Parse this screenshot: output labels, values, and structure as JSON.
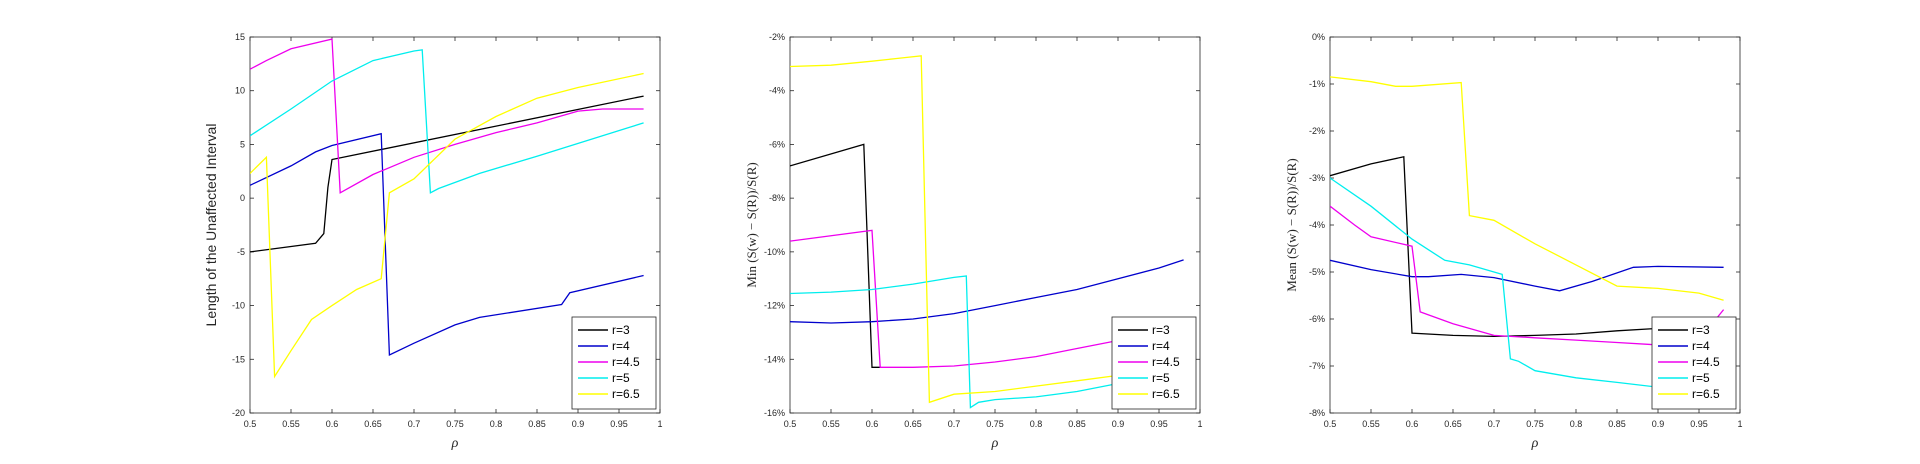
{
  "chart_data": [
    {
      "type": "line",
      "title": "",
      "xlabel": "ρ",
      "ylabel": "Length of the Unaffected Interval",
      "ylabel_style": "sans",
      "xlim": [
        0.5,
        1
      ],
      "ylim": [
        -20,
        15
      ],
      "xticks": [
        0.5,
        0.55,
        0.6,
        0.65,
        0.7,
        0.75,
        0.8,
        0.85,
        0.9,
        0.95,
        1
      ],
      "xtick_labels": [
        "0.5",
        "0.55",
        "0.6",
        "0.65",
        "0.7",
        "0.75",
        "0.8",
        "0.85",
        "0.9",
        "0.95",
        "1"
      ],
      "yticks": [
        -20,
        -15,
        -10,
        -5,
        0,
        5,
        10,
        15
      ],
      "ytick_labels": [
        "-20",
        "-15",
        "-10",
        "-5",
        "0",
        "5",
        "10",
        "15"
      ],
      "grid": false,
      "legend_position": "bottom-right",
      "series": [
        {
          "name": "r=3",
          "color": "#000000",
          "x": [
            0.5,
            0.58,
            0.59,
            0.595,
            0.6,
            0.98
          ],
          "y": [
            -5.0,
            -4.2,
            -3.3,
            1.0,
            3.6,
            9.5
          ]
        },
        {
          "name": "r=4",
          "color": "#0000cc",
          "x": [
            0.5,
            0.55,
            0.58,
            0.6,
            0.66,
            0.67,
            0.7,
            0.75,
            0.78,
            0.88,
            0.89,
            0.98
          ],
          "y": [
            1.2,
            3.0,
            4.3,
            4.9,
            6.0,
            -14.6,
            -13.5,
            -11.8,
            -11.1,
            -9.9,
            -8.8,
            -7.2
          ]
        },
        {
          "name": "r=4.5",
          "color": "#ee00ee",
          "x": [
            0.5,
            0.52,
            0.55,
            0.6,
            0.61,
            0.65,
            0.7,
            0.75,
            0.8,
            0.85,
            0.9,
            0.93,
            0.98
          ],
          "y": [
            12.0,
            12.8,
            13.9,
            14.8,
            0.5,
            2.2,
            3.8,
            5.0,
            6.1,
            7.0,
            8.1,
            8.3,
            8.3
          ]
        },
        {
          "name": "r=5",
          "color": "#00eeee",
          "x": [
            0.5,
            0.55,
            0.6,
            0.65,
            0.7,
            0.71,
            0.72,
            0.73,
            0.78,
            0.85,
            0.98
          ],
          "y": [
            5.8,
            8.3,
            10.9,
            12.8,
            13.7,
            13.8,
            0.5,
            0.9,
            2.3,
            3.9,
            7.0
          ]
        },
        {
          "name": "r=6.5",
          "color": "#ffff00",
          "x": [
            0.5,
            0.52,
            0.53,
            0.55,
            0.575,
            0.6,
            0.63,
            0.66,
            0.67,
            0.7,
            0.75,
            0.8,
            0.85,
            0.9,
            0.98
          ],
          "y": [
            2.3,
            3.8,
            -16.6,
            -14.2,
            -11.3,
            -10.0,
            -8.5,
            -7.5,
            0.5,
            1.8,
            5.5,
            7.6,
            9.3,
            10.3,
            11.6
          ]
        }
      ]
    },
    {
      "type": "line",
      "title": "",
      "xlabel": "ρ",
      "ylabel": "Min (S(w) − S(R))/S(R)",
      "ylabel_style": "serif",
      "xlim": [
        0.5,
        1
      ],
      "ylim": [
        -16,
        -2
      ],
      "xticks": [
        0.5,
        0.55,
        0.6,
        0.65,
        0.7,
        0.75,
        0.8,
        0.85,
        0.9,
        0.95,
        1
      ],
      "xtick_labels": [
        "0.5",
        "0.55",
        "0.6",
        "0.65",
        "0.7",
        "0.75",
        "0.8",
        "0.85",
        "0.9",
        "0.95",
        "1"
      ],
      "yticks": [
        -16,
        -14,
        -12,
        -10,
        -8,
        -6,
        -4,
        -2
      ],
      "ytick_labels": [
        "-16%",
        "-14%",
        "-12%",
        "-10%",
        "-8%",
        "-6%",
        "-4%",
        "-2%"
      ],
      "grid": false,
      "legend_position": "bottom-right",
      "series": [
        {
          "name": "r=3",
          "color": "#000000",
          "x": [
            0.5,
            0.59,
            0.6,
            0.61
          ],
          "y": [
            -6.8,
            -6.0,
            -14.3,
            -14.3
          ]
        },
        {
          "name": "r=4",
          "color": "#0000cc",
          "x": [
            0.5,
            0.55,
            0.6,
            0.65,
            0.7,
            0.75,
            0.8,
            0.85,
            0.9,
            0.95,
            0.98
          ],
          "y": [
            -12.6,
            -12.65,
            -12.6,
            -12.5,
            -12.3,
            -12.0,
            -11.7,
            -11.4,
            -11.0,
            -10.6,
            -10.3
          ]
        },
        {
          "name": "r=4.5",
          "color": "#ee00ee",
          "x": [
            0.5,
            0.6,
            0.61,
            0.65,
            0.7,
            0.75,
            0.8,
            0.85,
            0.9,
            0.95
          ],
          "y": [
            -9.6,
            -9.2,
            -14.3,
            -14.3,
            -14.25,
            -14.1,
            -13.9,
            -13.6,
            -13.3,
            -13.0
          ]
        },
        {
          "name": "r=5",
          "color": "#00eeee",
          "x": [
            0.5,
            0.55,
            0.6,
            0.65,
            0.7,
            0.715,
            0.72,
            0.73,
            0.75,
            0.8,
            0.85,
            0.9,
            0.95
          ],
          "y": [
            -11.55,
            -11.5,
            -11.4,
            -11.2,
            -10.95,
            -10.9,
            -15.8,
            -15.6,
            -15.5,
            -15.4,
            -15.2,
            -14.9,
            -14.7
          ]
        },
        {
          "name": "r=6.5",
          "color": "#ffff00",
          "x": [
            0.5,
            0.55,
            0.6,
            0.63,
            0.66,
            0.67,
            0.7,
            0.75,
            0.8,
            0.85,
            0.9,
            0.95
          ],
          "y": [
            -3.1,
            -3.05,
            -2.9,
            -2.8,
            -2.7,
            -15.6,
            -15.3,
            -15.2,
            -15.0,
            -14.8,
            -14.6,
            -14.4
          ]
        }
      ]
    },
    {
      "type": "line",
      "title": "",
      "xlabel": "ρ",
      "ylabel": "Mean (S(w) − S(R))/S(R)",
      "ylabel_style": "serif",
      "xlim": [
        0.5,
        1
      ],
      "ylim": [
        -8,
        0
      ],
      "xticks": [
        0.5,
        0.55,
        0.6,
        0.65,
        0.7,
        0.75,
        0.8,
        0.85,
        0.9,
        0.95,
        1
      ],
      "xtick_labels": [
        "0.5",
        "0.55",
        "0.6",
        "0.65",
        "0.7",
        "0.75",
        "0.8",
        "0.85",
        "0.9",
        "0.95",
        "1"
      ],
      "yticks": [
        -8,
        -7,
        -6,
        -5,
        -4,
        -3,
        -2,
        -1,
        0
      ],
      "ytick_labels": [
        "-8%",
        "-7%",
        "-6%",
        "-5%",
        "-4%",
        "-3%",
        "-2%",
        "-1%",
        "0%"
      ],
      "grid": false,
      "legend_position": "bottom-right",
      "series": [
        {
          "name": "r=3",
          "color": "#000000",
          "x": [
            0.5,
            0.55,
            0.59,
            0.6,
            0.65,
            0.7,
            0.75,
            0.8,
            0.85,
            0.9,
            0.95
          ],
          "y": [
            -2.95,
            -2.7,
            -2.55,
            -6.3,
            -6.35,
            -6.37,
            -6.35,
            -6.32,
            -6.25,
            -6.2,
            -6.15
          ]
        },
        {
          "name": "r=4",
          "color": "#0000cc",
          "x": [
            0.5,
            0.55,
            0.6,
            0.62,
            0.66,
            0.7,
            0.75,
            0.78,
            0.82,
            0.87,
            0.9,
            0.98
          ],
          "y": [
            -4.75,
            -4.95,
            -5.1,
            -5.1,
            -5.05,
            -5.12,
            -5.3,
            -5.4,
            -5.2,
            -4.9,
            -4.88,
            -4.9
          ]
        },
        {
          "name": "r=4.5",
          "color": "#ee00ee",
          "x": [
            0.5,
            0.53,
            0.55,
            0.6,
            0.61,
            0.65,
            0.7,
            0.75,
            0.8,
            0.85,
            0.9,
            0.95,
            0.98
          ],
          "y": [
            -3.6,
            -4.0,
            -4.25,
            -4.45,
            -5.85,
            -6.1,
            -6.35,
            -6.4,
            -6.45,
            -6.5,
            -6.55,
            -6.45,
            -5.8
          ]
        },
        {
          "name": "r=5",
          "color": "#00eeee",
          "x": [
            0.5,
            0.55,
            0.6,
            0.64,
            0.67,
            0.71,
            0.72,
            0.73,
            0.75,
            0.8,
            0.85,
            0.9,
            0.95
          ],
          "y": [
            -3.0,
            -3.6,
            -4.3,
            -4.75,
            -4.85,
            -5.05,
            -6.85,
            -6.9,
            -7.1,
            -7.25,
            -7.35,
            -7.45,
            -7.5
          ]
        },
        {
          "name": "r=6.5",
          "color": "#ffff00",
          "x": [
            0.5,
            0.55,
            0.58,
            0.6,
            0.66,
            0.67,
            0.7,
            0.75,
            0.8,
            0.85,
            0.9,
            0.95,
            0.98
          ],
          "y": [
            -0.85,
            -0.95,
            -1.05,
            -1.05,
            -0.97,
            -3.8,
            -3.9,
            -4.4,
            -4.85,
            -5.3,
            -5.35,
            -5.45,
            -5.6
          ]
        }
      ]
    }
  ]
}
